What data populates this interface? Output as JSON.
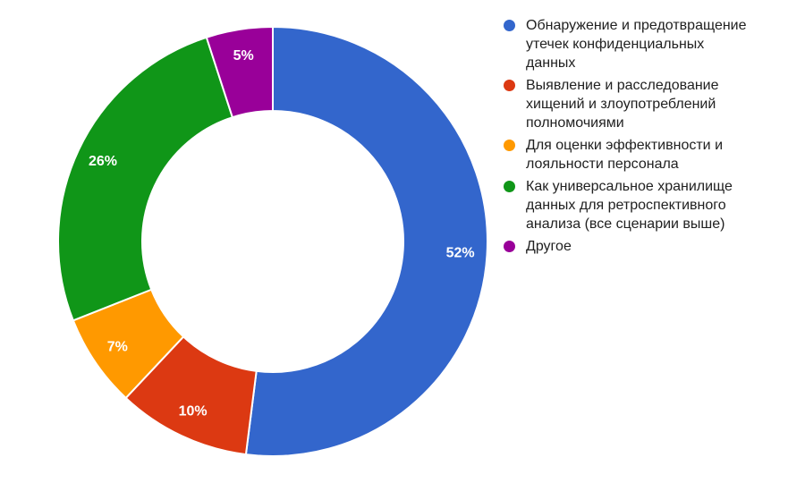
{
  "chart_data": {
    "type": "pie",
    "subtype": "donut",
    "title": "",
    "legend_position": "right",
    "background_color": "#FFFFFF",
    "slice_label_color": "#FFFFFF",
    "legend_text_color": "#212121",
    "categories": [
      "Обнаружение и предотвращение утечек конфиденциальных данных",
      "Выявление и расследование хищений и злоупотреблений полномочиями",
      "Для оценки эффективности и лояльности персонала",
      "Как универсальное хранилище данных для ретроспективного анализа (все сценарии выше)",
      "Другое"
    ],
    "values": [
      52,
      10,
      7,
      26,
      5
    ],
    "slice_labels": [
      "52%",
      "10%",
      "7%",
      "26%",
      "5%"
    ],
    "colors": [
      "#3366CC",
      "#DC3912",
      "#FF9900",
      "#109618",
      "#990099"
    ],
    "start_angle_deg": 0,
    "direction": "clockwise"
  }
}
